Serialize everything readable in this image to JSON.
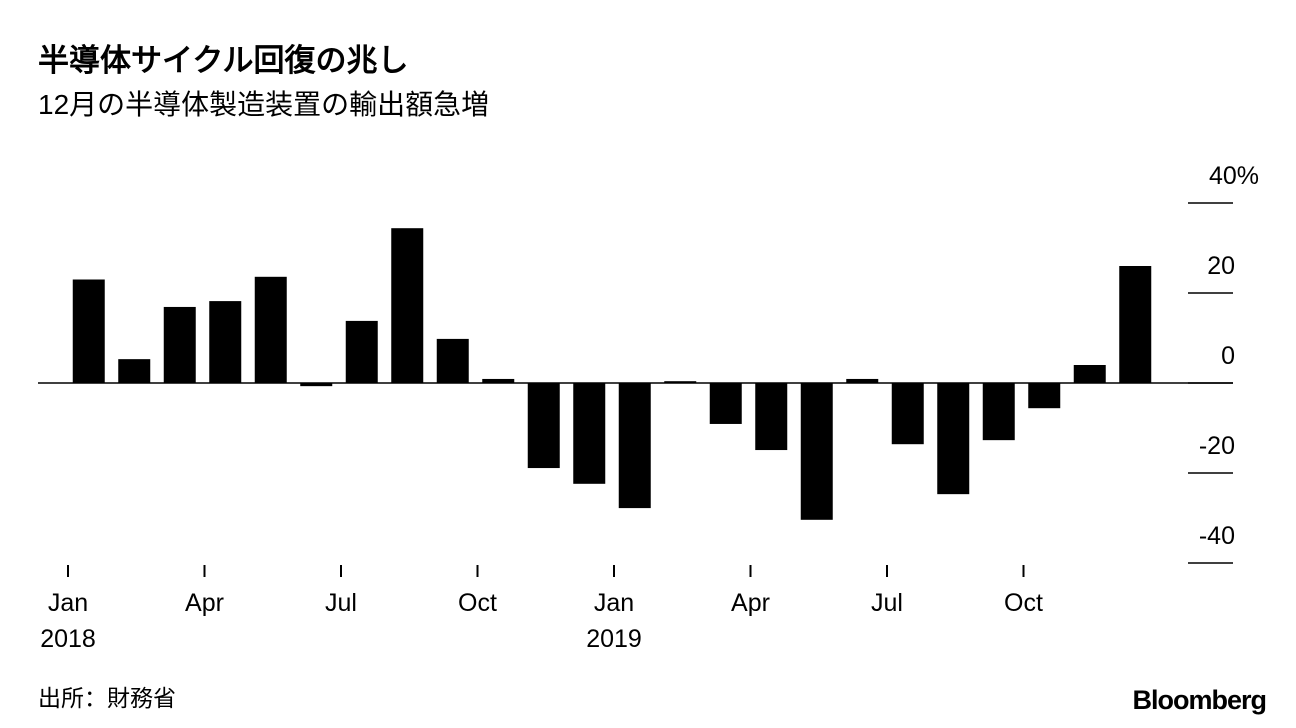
{
  "chart_data": {
    "type": "bar",
    "title": "半導体サイクル回復の兆し",
    "subtitle": "12月の半導体製造装置の輸出額急増",
    "source": "出所：財務省",
    "brand": "Bloomberg",
    "categories": [
      "Jan 2018",
      null,
      null,
      "Apr",
      null,
      null,
      "Jul",
      null,
      null,
      "Oct",
      null,
      null,
      "Jan 2019",
      null,
      null,
      "Apr",
      null,
      null,
      "Jul",
      null,
      null,
      "Oct",
      null,
      null
    ],
    "values": [
      23,
      5.3,
      16.9,
      18.2,
      23.6,
      -0.7,
      13.8,
      34.4,
      9.8,
      0.9,
      -18.9,
      -22.4,
      -27.8,
      0.4,
      -9.1,
      -14.9,
      -30.4,
      0.9,
      -13.6,
      -24.7,
      -12.7,
      -5.6,
      4,
      26
    ],
    "color": "#000000",
    "ylim": [
      -40,
      40
    ],
    "yticks": [
      {
        "value": 40,
        "label": "40%"
      },
      20,
      0,
      -20,
      -40
    ],
    "grid": false
  }
}
